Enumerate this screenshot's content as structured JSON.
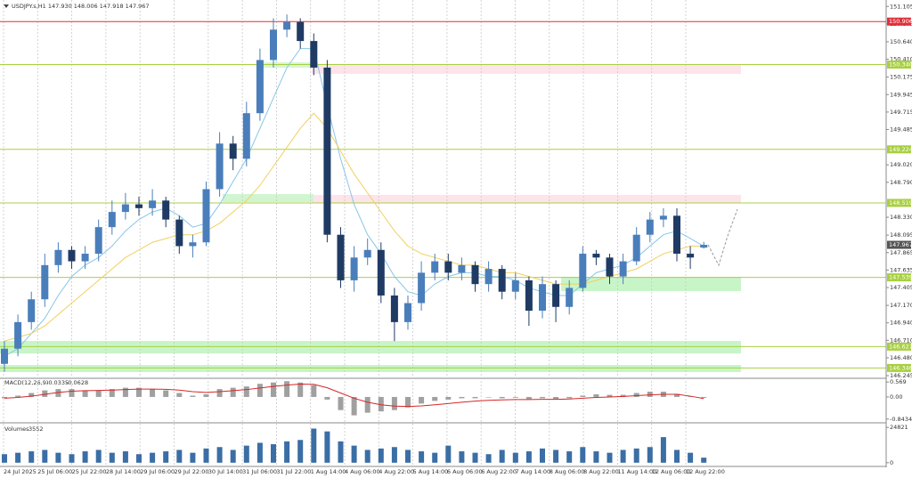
{
  "chart_data": [
    {
      "type": "candlestick",
      "title": "USDJPY.s,H1  147.930 148.006 147.918 147.967",
      "up_color": "#4a7ebb",
      "down_color": "#1f3b64",
      "open": [
        146.4,
        146.6,
        146.95,
        147.25,
        147.7,
        147.9,
        147.75,
        147.85,
        148.2,
        148.4,
        148.5,
        148.45,
        148.55,
        148.3,
        147.95,
        148.0,
        148.7,
        149.3,
        149.1,
        149.7,
        150.4,
        150.8,
        150.9,
        150.65,
        150.3,
        148.1,
        147.5,
        147.8,
        147.9,
        147.3,
        146.95,
        147.2,
        147.6,
        147.75,
        147.6,
        147.7,
        147.45,
        147.65,
        147.35,
        147.5,
        147.1,
        147.45,
        147.15,
        147.4,
        147.85,
        147.8,
        147.55,
        147.75,
        148.1,
        148.3,
        148.35,
        147.85,
        147.93
      ],
      "high": [
        146.7,
        147.05,
        147.35,
        147.85,
        148.0,
        147.95,
        147.95,
        148.3,
        148.55,
        148.65,
        148.6,
        148.7,
        148.6,
        148.35,
        148.1,
        148.8,
        149.45,
        149.4,
        149.85,
        150.55,
        150.95,
        151.0,
        150.95,
        150.75,
        150.4,
        148.2,
        147.95,
        148.05,
        148.0,
        147.4,
        147.3,
        147.75,
        147.85,
        147.85,
        147.8,
        147.75,
        147.75,
        147.7,
        147.6,
        147.55,
        147.55,
        147.5,
        147.5,
        147.95,
        147.9,
        147.85,
        147.85,
        148.2,
        148.4,
        148.45,
        148.45,
        147.95,
        148.006
      ],
      "low": [
        146.3,
        146.5,
        146.85,
        147.15,
        147.6,
        147.65,
        147.65,
        147.75,
        148.1,
        148.3,
        148.35,
        148.35,
        148.2,
        147.85,
        147.8,
        147.95,
        148.6,
        148.95,
        149.0,
        149.6,
        150.3,
        150.7,
        150.55,
        150.2,
        148.0,
        147.4,
        147.35,
        147.7,
        147.2,
        146.7,
        146.85,
        147.1,
        147.5,
        147.5,
        147.5,
        147.35,
        147.35,
        147.25,
        147.25,
        146.9,
        147.0,
        146.95,
        147.05,
        147.35,
        147.7,
        147.45,
        147.45,
        147.7,
        148.0,
        148.2,
        147.75,
        147.65,
        147.918
      ],
      "close": [
        146.6,
        146.95,
        147.25,
        147.7,
        147.9,
        147.75,
        147.85,
        148.2,
        148.4,
        148.5,
        148.45,
        148.55,
        148.3,
        147.95,
        148.0,
        148.7,
        149.3,
        149.1,
        149.7,
        150.4,
        150.8,
        150.9,
        150.65,
        150.3,
        148.1,
        147.5,
        147.8,
        147.9,
        147.3,
        146.95,
        147.2,
        147.6,
        147.75,
        147.6,
        147.7,
        147.45,
        147.65,
        147.35,
        147.5,
        147.1,
        147.45,
        147.15,
        147.4,
        147.85,
        147.8,
        147.55,
        147.75,
        148.1,
        148.3,
        148.35,
        147.85,
        147.8,
        147.967
      ],
      "lines": [
        {
          "color": "#87c6e8",
          "values": [
            146.5,
            146.6,
            146.8,
            147.0,
            147.3,
            147.55,
            147.7,
            147.8,
            147.95,
            148.15,
            148.3,
            148.4,
            148.45,
            148.35,
            148.2,
            148.25,
            148.5,
            148.8,
            149.1,
            149.5,
            149.9,
            150.3,
            150.55,
            150.55,
            149.8,
            149.1,
            148.5,
            148.1,
            147.85,
            147.55,
            147.35,
            147.3,
            147.45,
            147.55,
            147.6,
            147.6,
            147.55,
            147.55,
            147.5,
            147.4,
            147.35,
            147.3,
            147.3,
            147.45,
            147.6,
            147.65,
            147.7,
            147.8,
            147.95,
            148.1,
            148.15,
            148.05,
            147.95
          ]
        },
        {
          "color": "#f0d060",
          "values": [
            146.7,
            146.75,
            146.8,
            146.9,
            147.05,
            147.2,
            147.35,
            147.5,
            147.65,
            147.8,
            147.9,
            148.0,
            148.05,
            148.1,
            148.1,
            148.15,
            148.25,
            148.4,
            148.55,
            148.75,
            149.0,
            149.25,
            149.5,
            149.7,
            149.5,
            149.2,
            148.9,
            148.65,
            148.4,
            148.15,
            147.95,
            147.85,
            147.8,
            147.75,
            147.7,
            147.7,
            147.65,
            147.6,
            147.6,
            147.55,
            147.5,
            147.45,
            147.45,
            147.45,
            147.5,
            147.55,
            147.6,
            147.65,
            147.75,
            147.85,
            147.9,
            147.95,
            147.95
          ]
        }
      ],
      "ylim": [
        146.21,
        151.19
      ],
      "yticks": [
        151.105,
        150.875,
        {
          "value": 150.64,
          "label": "150.640"
        },
        {
          "value": 150.41,
          "label": "150.410"
        },
        150.175,
        149.945,
        149.715,
        149.485,
        {
          "value": 149.02,
          "label": "149.020"
        },
        {
          "value": 148.79,
          "label": "148.790"
        },
        {
          "value": 148.33,
          "label": "148.330"
        },
        148.095,
        147.865,
        147.635,
        147.405,
        {
          "value": 147.17,
          "label": "147.170"
        },
        {
          "value": 146.94,
          "label": "146.940"
        },
        {
          "value": 146.71,
          "label": "146.710"
        },
        {
          "value": 146.48,
          "label": "146.480"
        },
        146.245
      ],
      "levels": [
        150.906,
        {
          "value": 150.34,
          "label": "150.340"
        },
        149.224,
        148.519,
        147.539,
        146.627,
        146.346
      ],
      "level_colors": [
        "#e0303a",
        "#a8d040",
        "#a8d040",
        "#a8d040",
        "#a8d040",
        "#a8d040",
        "#a8d040"
      ],
      "x_labels": [
        "24 Jul 2025",
        "25 Jul 06:00",
        "25 Jul 22:00",
        "28 Jul 14:00",
        "29 Jul 06:00",
        "29 Jul 22:00",
        "30 Jul 14:00",
        "31 Jul 06:00",
        "31 Jul 22:00",
        "1 Aug 14:00",
        "4 Aug 06:00",
        "4 Aug 22:00",
        "5 Aug 14:00",
        "6 Aug 06:00",
        "6 Aug 22:00",
        "7 Aug 14:00",
        "8 Aug 06:00",
        "8 Aug 22:00",
        "11 Aug 14:00",
        "12 Aug 06:00",
        "12 Aug 22:00"
      ]
    },
    {
      "type": "macd",
      "title": "MACD(12,26,9)",
      "color": "#a0a0a0",
      "signal_color": "#d62728",
      "values": [
        -0.05,
        0.05,
        0.15,
        0.25,
        0.3,
        0.3,
        0.25,
        0.25,
        0.3,
        0.35,
        0.35,
        0.3,
        0.25,
        0.15,
        0.05,
        0.1,
        0.3,
        0.35,
        0.4,
        0.5,
        0.55,
        0.6,
        0.55,
        0.45,
        -0.1,
        -0.5,
        -0.7,
        -0.6,
        -0.55,
        -0.5,
        -0.4,
        -0.25,
        -0.15,
        -0.1,
        -0.05,
        -0.05,
        -0.02,
        -0.05,
        -0.03,
        -0.08,
        -0.05,
        -0.08,
        -0.05,
        0.05,
        0.1,
        0.08,
        0.08,
        0.15,
        0.2,
        0.2,
        0.12,
        0.02,
        -0.0335
      ],
      "signal": [
        -0.05,
        -0.02,
        0.03,
        0.1,
        0.17,
        0.22,
        0.24,
        0.25,
        0.26,
        0.28,
        0.3,
        0.3,
        0.29,
        0.26,
        0.2,
        0.17,
        0.2,
        0.24,
        0.28,
        0.34,
        0.4,
        0.45,
        0.49,
        0.48,
        0.35,
        0.15,
        -0.05,
        -0.2,
        -0.3,
        -0.35,
        -0.36,
        -0.34,
        -0.3,
        -0.25,
        -0.2,
        -0.16,
        -0.13,
        -0.11,
        -0.1,
        -0.1,
        -0.09,
        -0.09,
        -0.08,
        -0.05,
        -0.02,
        0,
        0.02,
        0.05,
        0.08,
        0.1,
        0.1,
        0.03,
        -0.0628
      ],
      "ylim": [
        -0.985,
        0.71
      ],
      "yticks": [
        0.569,
        {
          "value": 0,
          "label": "0.00"
        },
        -0.8434
      ]
    },
    {
      "type": "bar",
      "title": "Volumes",
      "color": "#3a6ea5",
      "values": [
        6000,
        7000,
        8000,
        9000,
        7000,
        6000,
        8000,
        9000,
        7000,
        8000,
        6000,
        7000,
        8000,
        9000,
        7000,
        10000,
        11000,
        9000,
        12000,
        14000,
        13000,
        15000,
        16000,
        24000,
        22000,
        15000,
        12000,
        9000,
        10000,
        11000,
        9000,
        8000,
        7000,
        12000,
        8000,
        7000,
        6000,
        9000,
        7000,
        8000,
        10000,
        9000,
        8000,
        11000,
        8000,
        7000,
        9000,
        10000,
        11000,
        18000,
        9000,
        7000,
        3552
      ],
      "ylim": [
        -2613,
        27434
      ],
      "yticks": [
        24821,
        0
      ]
    }
  ]
}
